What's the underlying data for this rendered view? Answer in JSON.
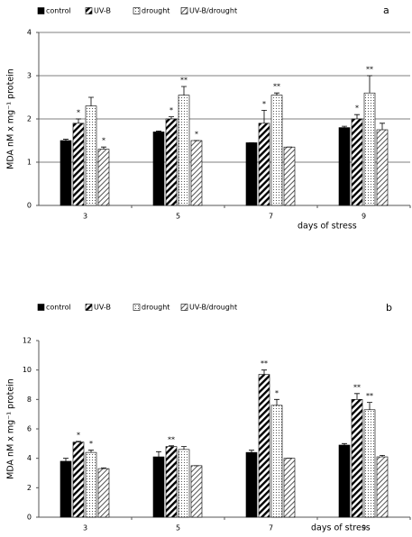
{
  "chart_data": [
    {
      "type": "bar",
      "title": "a",
      "xlabel": "days of stress",
      "ylabel": "MDA nM x mg⁻¹ protein",
      "categories": [
        "3",
        "5",
        "7",
        "9"
      ],
      "ylim": [
        0,
        4
      ],
      "yticks": [
        0,
        1,
        2,
        3,
        4
      ],
      "grid": true,
      "series": [
        {
          "name": "control",
          "color": "#000000",
          "pattern": "solid",
          "values": [
            1.5,
            1.7,
            1.45,
            1.8
          ],
          "errors": [
            0.03,
            0.02,
            0.0,
            0.03
          ],
          "markers": [
            null,
            null,
            null,
            null
          ]
        },
        {
          "name": "UV-B",
          "color": "#000000",
          "pattern": "stripes",
          "values": [
            1.9,
            2.0,
            1.9,
            2.0
          ],
          "errors": [
            0.1,
            0.05,
            0.3,
            0.1
          ],
          "markers": [
            "*",
            "*",
            "*",
            "*"
          ]
        },
        {
          "name": "drought",
          "color": "#000000",
          "pattern": "dots",
          "values": [
            2.3,
            2.55,
            2.55,
            2.6
          ],
          "errors": [
            0.2,
            0.2,
            0.05,
            0.4
          ],
          "markers": [
            null,
            "**",
            "**",
            "**"
          ]
        },
        {
          "name": "UV-B/drought",
          "color": "#000000",
          "pattern": "hatch",
          "values": [
            1.3,
            1.5,
            1.35,
            1.75
          ],
          "errors": [
            0.05,
            0.0,
            0.0,
            0.15
          ],
          "markers": [
            "*",
            "*",
            null,
            null
          ]
        }
      ]
    },
    {
      "type": "bar",
      "title": "b",
      "xlabel": "days of stress",
      "ylabel": "MDA nM x mg⁻¹ protein",
      "categories": [
        "3",
        "5",
        "7",
        "9"
      ],
      "ylim": [
        0,
        12
      ],
      "yticks": [
        0,
        2,
        4,
        6,
        8,
        10,
        12
      ],
      "grid": false,
      "series": [
        {
          "name": "control",
          "color": "#000000",
          "pattern": "solid",
          "values": [
            3.8,
            4.1,
            4.4,
            4.9
          ],
          "errors": [
            0.2,
            0.35,
            0.15,
            0.1
          ],
          "markers": [
            null,
            null,
            null,
            null
          ]
        },
        {
          "name": "UV-B",
          "color": "#000000",
          "pattern": "stripes",
          "values": [
            5.1,
            4.8,
            9.7,
            8.0
          ],
          "errors": [
            0.05,
            0.05,
            0.3,
            0.4
          ],
          "markers": [
            "*",
            "**",
            "**",
            "**"
          ]
        },
        {
          "name": "drought",
          "color": "#000000",
          "pattern": "dots",
          "values": [
            4.4,
            4.6,
            7.6,
            7.3
          ],
          "errors": [
            0.15,
            0.2,
            0.4,
            0.5
          ],
          "markers": [
            "*",
            null,
            "*",
            "**"
          ]
        },
        {
          "name": "UV-B/drought",
          "color": "#000000",
          "pattern": "hatch",
          "values": [
            3.3,
            3.5,
            4.0,
            4.1
          ],
          "errors": [
            0.05,
            0.0,
            0.0,
            0.1
          ],
          "markers": [
            null,
            null,
            null,
            null
          ]
        }
      ]
    }
  ]
}
